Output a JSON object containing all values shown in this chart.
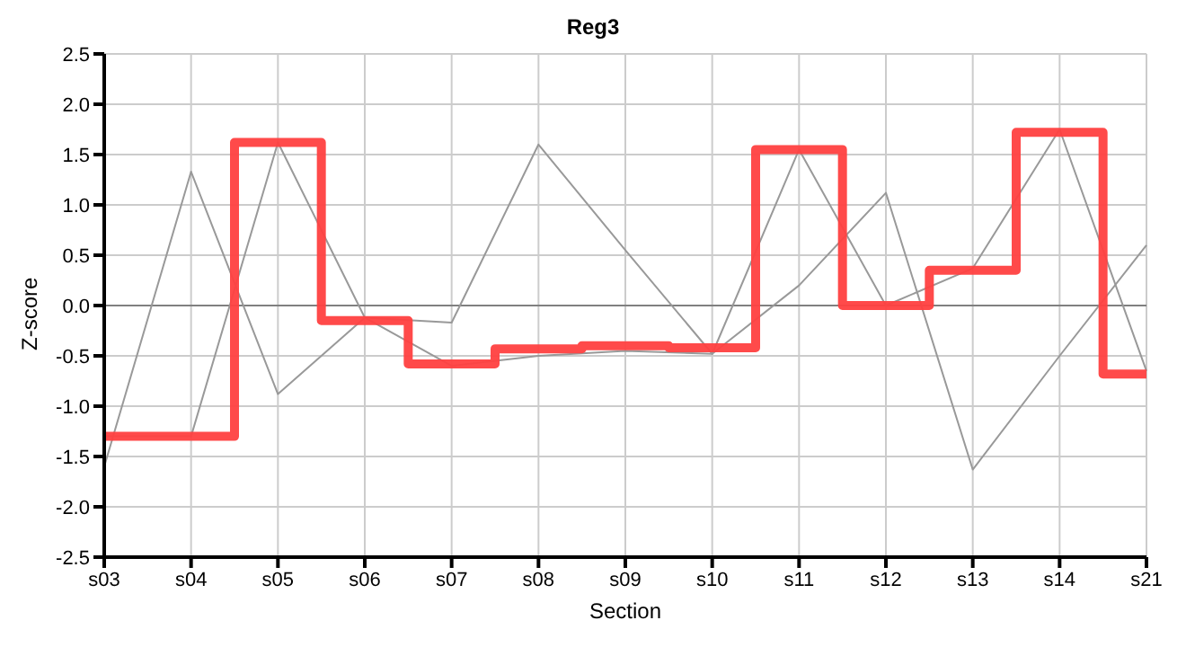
{
  "chart_data": {
    "type": "line",
    "title": "Reg3",
    "xlabel": "Section",
    "ylabel": "Z-score",
    "categories": [
      "s03",
      "s04",
      "s05",
      "s06",
      "s07",
      "s08",
      "s09",
      "s10",
      "s11",
      "s12",
      "s13",
      "s14",
      "s21"
    ],
    "series": [
      {
        "type": "line",
        "color": "#999999",
        "values": [
          -1.6,
          1.33,
          -0.88,
          -0.12,
          -0.17,
          1.6,
          0.55,
          -0.48,
          0.2,
          1.12,
          -1.63,
          -0.5,
          0.6
        ]
      },
      {
        "type": "line",
        "color": "#999999",
        "values": [
          -1.3,
          -1.3,
          1.62,
          -0.12,
          -0.6,
          -0.5,
          -0.45,
          -0.48,
          1.55,
          0.0,
          0.37,
          1.75,
          -0.65
        ]
      },
      {
        "type": "step",
        "color": "#ff4040",
        "values": [
          -1.3,
          -1.3,
          1.62,
          -0.15,
          -0.58,
          -0.43,
          -0.4,
          -0.42,
          1.55,
          0.0,
          0.35,
          1.72,
          -0.68
        ]
      }
    ],
    "ylim": [
      -2.5,
      2.5
    ],
    "yticks": [
      -2.5,
      {
        "value": -2,
        "label": "-2.0"
      },
      -1.5,
      {
        "value": -1,
        "label": "-1.0"
      },
      -0.5,
      {
        "value": 0,
        "label": "0.0"
      },
      0.5,
      {
        "value": 1,
        "label": "1.0"
      },
      1.5,
      {
        "value": 2,
        "label": "2.0"
      },
      2.5
    ],
    "ref_lines": [
      {
        "axis": "y",
        "value": 0,
        "color": "#808080"
      }
    ],
    "grid": true,
    "legend": false,
    "marker": "none"
  }
}
